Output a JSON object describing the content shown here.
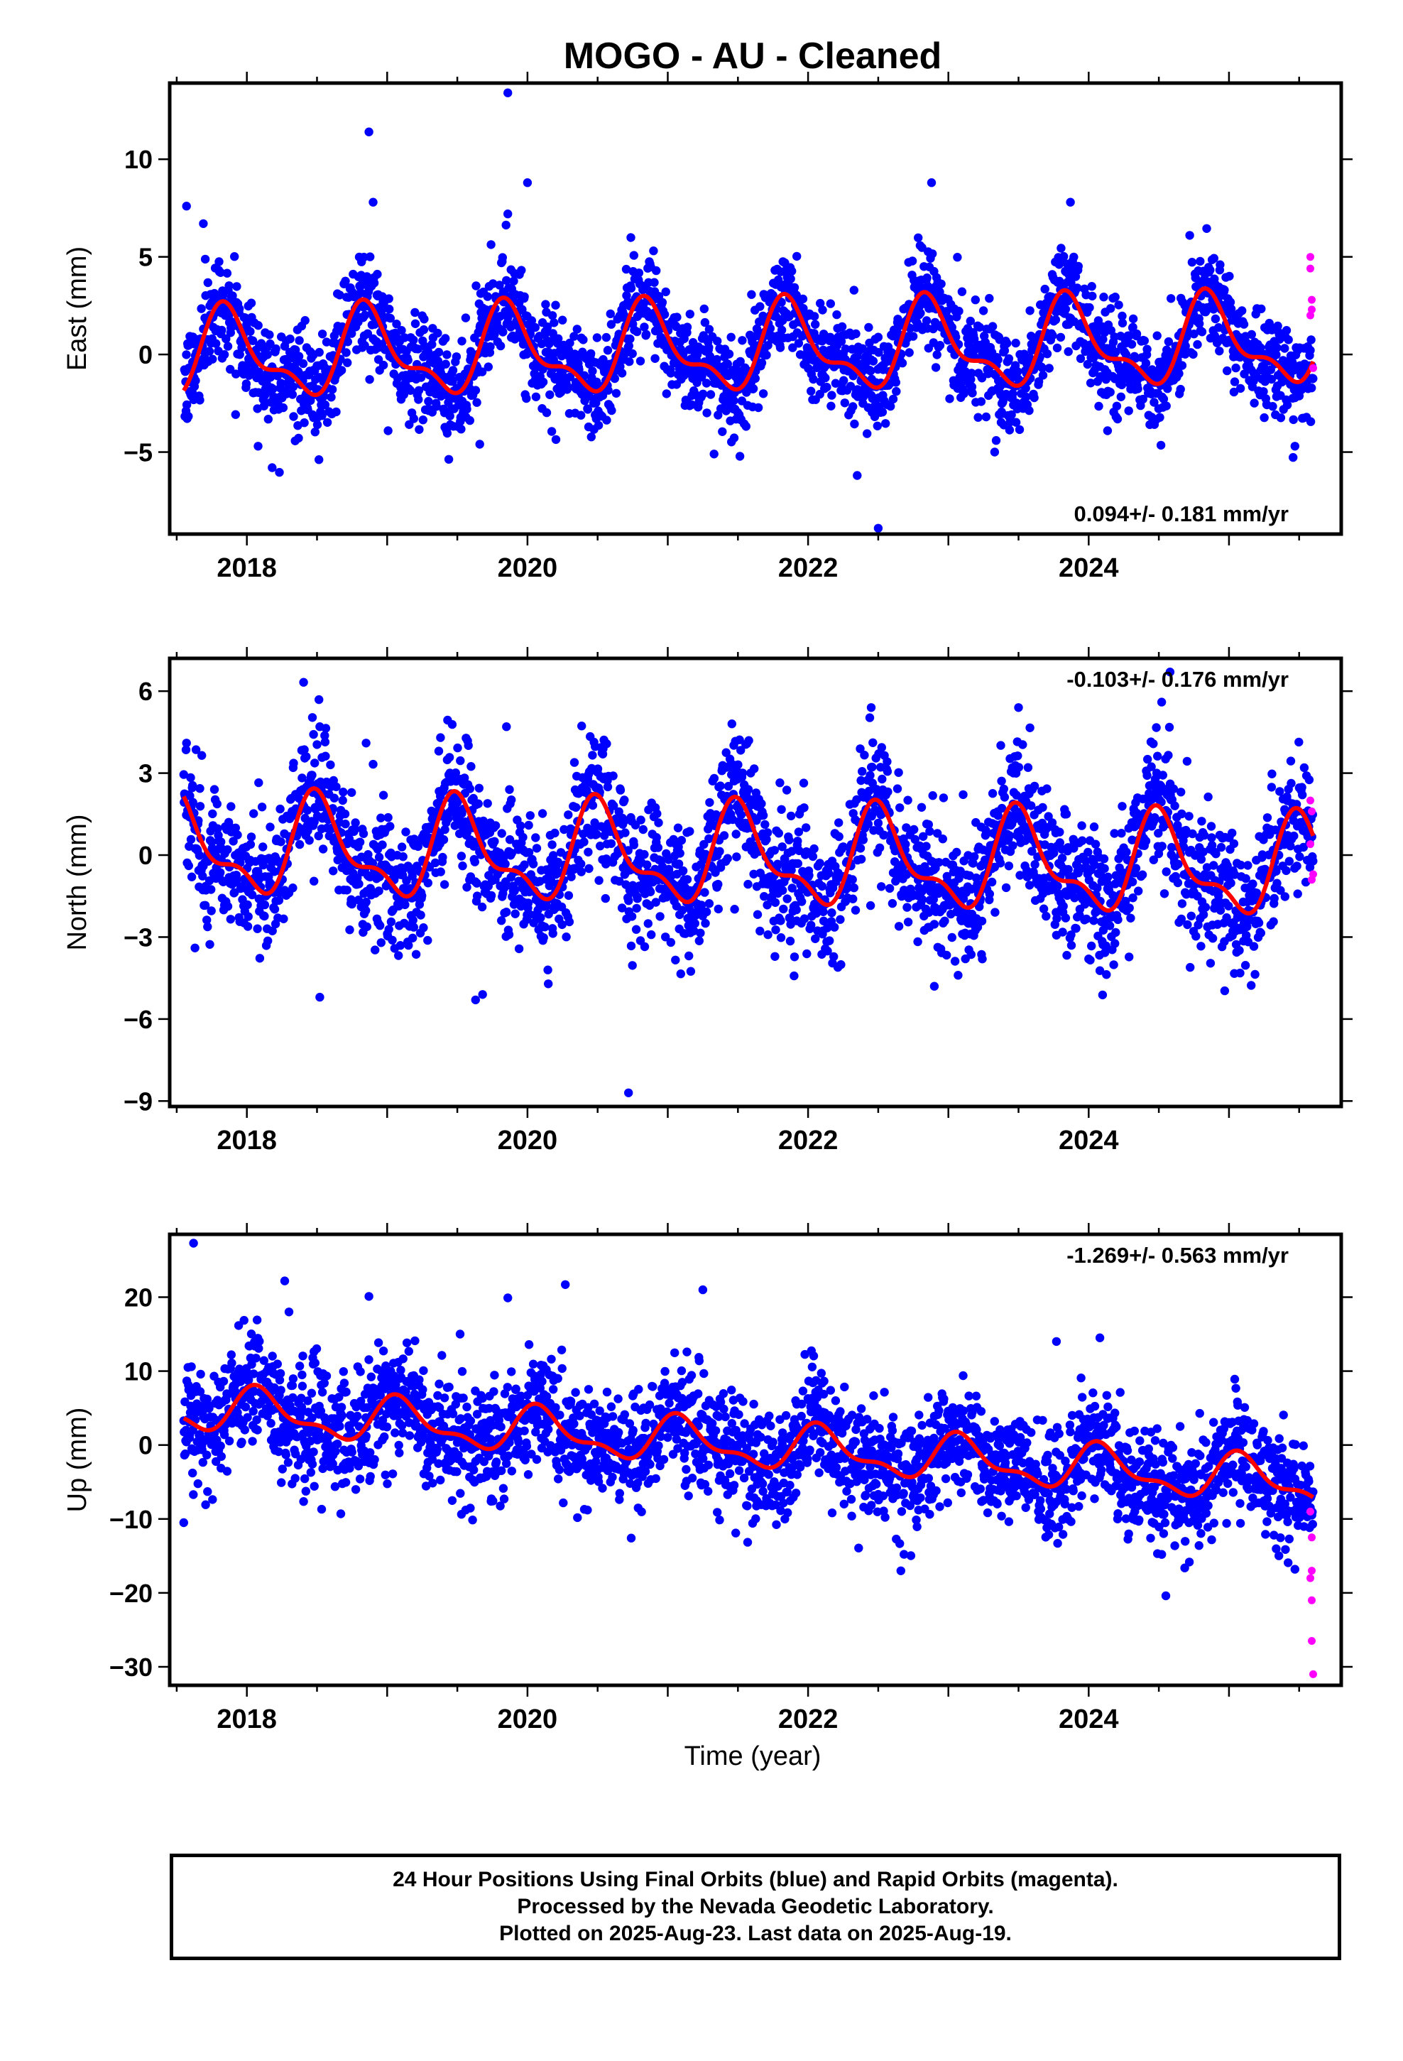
{
  "title": "MOGO  - AU - Cleaned",
  "xlabel": "Time (year)",
  "colors": {
    "final": "#0000ff",
    "rapid": "#ff00ff",
    "fit": "#ff0000"
  },
  "footer": [
    "24 Hour Positions Using Final Orbits (blue) and Rapid Orbits (magenta).",
    "Processed by the Nevada Geodetic Laboratory.",
    "Plotted on 2025-Aug-23. Last data on 2025-Aug-19."
  ],
  "chart_data": [
    {
      "type": "scatter",
      "ylabel": "East (mm)",
      "xlim": [
        2017.45,
        2025.8
      ],
      "ylim": [
        -9.2,
        13.9
      ],
      "yticks": [
        -5,
        0,
        5,
        10
      ],
      "xticks": [
        2018,
        2020,
        2022,
        2024
      ],
      "rate_label": "0.094+/- 0.181 mm/yr",
      "rate_position": "bottom-right",
      "trend": {
        "start": 2017.55,
        "end": 2025.6,
        "value_at_start": -0.1,
        "rate": 0.094,
        "annual_amp": 2.0,
        "annual_phase_year": 2017.87,
        "noise_sd": 1.25
      },
      "rapid_points": [
        [
          2025.58,
          5.0
        ],
        [
          2025.58,
          4.4
        ],
        [
          2025.59,
          2.8
        ],
        [
          2025.59,
          2.3
        ],
        [
          2025.58,
          2.0
        ],
        [
          2025.6,
          -0.7
        ]
      ],
      "outliers": [
        [
          2017.57,
          7.6
        ],
        [
          2017.69,
          6.7
        ],
        [
          2018.87,
          11.4
        ],
        [
          2018.9,
          7.8
        ],
        [
          2019.86,
          13.4
        ],
        [
          2019.86,
          7.2
        ],
        [
          2020.0,
          8.8
        ],
        [
          2022.88,
          8.8
        ],
        [
          2023.87,
          7.8
        ],
        [
          2024.72,
          6.1
        ],
        [
          2018.18,
          -5.8
        ],
        [
          2022.5,
          -8.9
        ],
        [
          2022.35,
          -6.2
        ],
        [
          2023.33,
          -5.0
        ],
        [
          2025.47,
          -4.7
        ],
        [
          2021.33,
          -5.1
        ],
        [
          2018.08,
          -4.7
        ],
        [
          2019.66,
          -4.6
        ]
      ]
    },
    {
      "type": "scatter",
      "ylabel": "North (mm)",
      "xlim": [
        2017.45,
        2025.8
      ],
      "ylim": [
        -9.2,
        7.2
      ],
      "yticks": [
        -9,
        -6,
        -3,
        0,
        3,
        6
      ],
      "xticks": [
        2018,
        2020,
        2022,
        2024
      ],
      "rate_label": "-0.103+/- 0.176 mm/yr",
      "rate_position": "top-right",
      "trend": {
        "start": 2017.55,
        "end": 2025.6,
        "value_at_start": 0.3,
        "rate": -0.103,
        "annual_amp": 1.6,
        "annual_phase_year": 2017.52,
        "noise_sd": 1.2
      },
      "rapid_points": [
        [
          2025.58,
          2.0
        ],
        [
          2025.59,
          1.6
        ],
        [
          2025.58,
          0.4
        ],
        [
          2025.6,
          -0.7
        ],
        [
          2025.59,
          -0.9
        ]
      ],
      "outliers": [
        [
          2018.52,
          4.7
        ],
        [
          2018.85,
          4.1
        ],
        [
          2019.38,
          4.3
        ],
        [
          2019.85,
          4.7
        ],
        [
          2020.72,
          -8.7
        ],
        [
          2018.52,
          -5.2
        ],
        [
          2019.63,
          -5.3
        ],
        [
          2019.68,
          -5.1
        ],
        [
          2022.45,
          5.4
        ],
        [
          2022.9,
          -4.8
        ],
        [
          2023.5,
          5.4
        ],
        [
          2024.52,
          5.6
        ],
        [
          2024.58,
          6.7
        ],
        [
          2017.57,
          4.1
        ],
        [
          2017.63,
          -3.4
        ],
        [
          2024.0,
          -3.8
        ]
      ]
    },
    {
      "type": "scatter",
      "ylabel": "Up (mm)",
      "xlim": [
        2017.45,
        2025.8
      ],
      "ylim": [
        -32.5,
        28.5
      ],
      "yticks": [
        -30,
        -20,
        -10,
        0,
        10,
        20
      ],
      "xticks": [
        2018,
        2020,
        2022,
        2024
      ],
      "rate_label": "-1.269+/- 0.563 mm/yr",
      "rate_position": "top-right",
      "trend": {
        "start": 2017.55,
        "end": 2025.6,
        "value_at_start": 5.0,
        "rate": -1.269,
        "annual_amp": 2.7,
        "annual_phase_year": 2018.1,
        "noise_sd": 3.8
      },
      "rapid_points": [
        [
          2025.58,
          -9.0
        ],
        [
          2025.59,
          -12.5
        ],
        [
          2025.59,
          -17.0
        ],
        [
          2025.58,
          -18.0
        ],
        [
          2025.59,
          -21.0
        ],
        [
          2025.59,
          -26.5
        ],
        [
          2025.6,
          -31.0
        ]
      ],
      "outliers": [
        [
          2017.62,
          27.3
        ],
        [
          2018.27,
          22.2
        ],
        [
          2018.87,
          20.1
        ],
        [
          2019.86,
          19.9
        ],
        [
          2020.27,
          21.7
        ],
        [
          2021.25,
          21.0
        ],
        [
          2017.55,
          -10.5
        ],
        [
          2024.55,
          -20.4
        ],
        [
          2025.47,
          -16.8
        ],
        [
          2023.77,
          14.0
        ],
        [
          2024.08,
          14.5
        ],
        [
          2018.3,
          18.0
        ],
        [
          2019.52,
          15.0
        ]
      ]
    }
  ]
}
